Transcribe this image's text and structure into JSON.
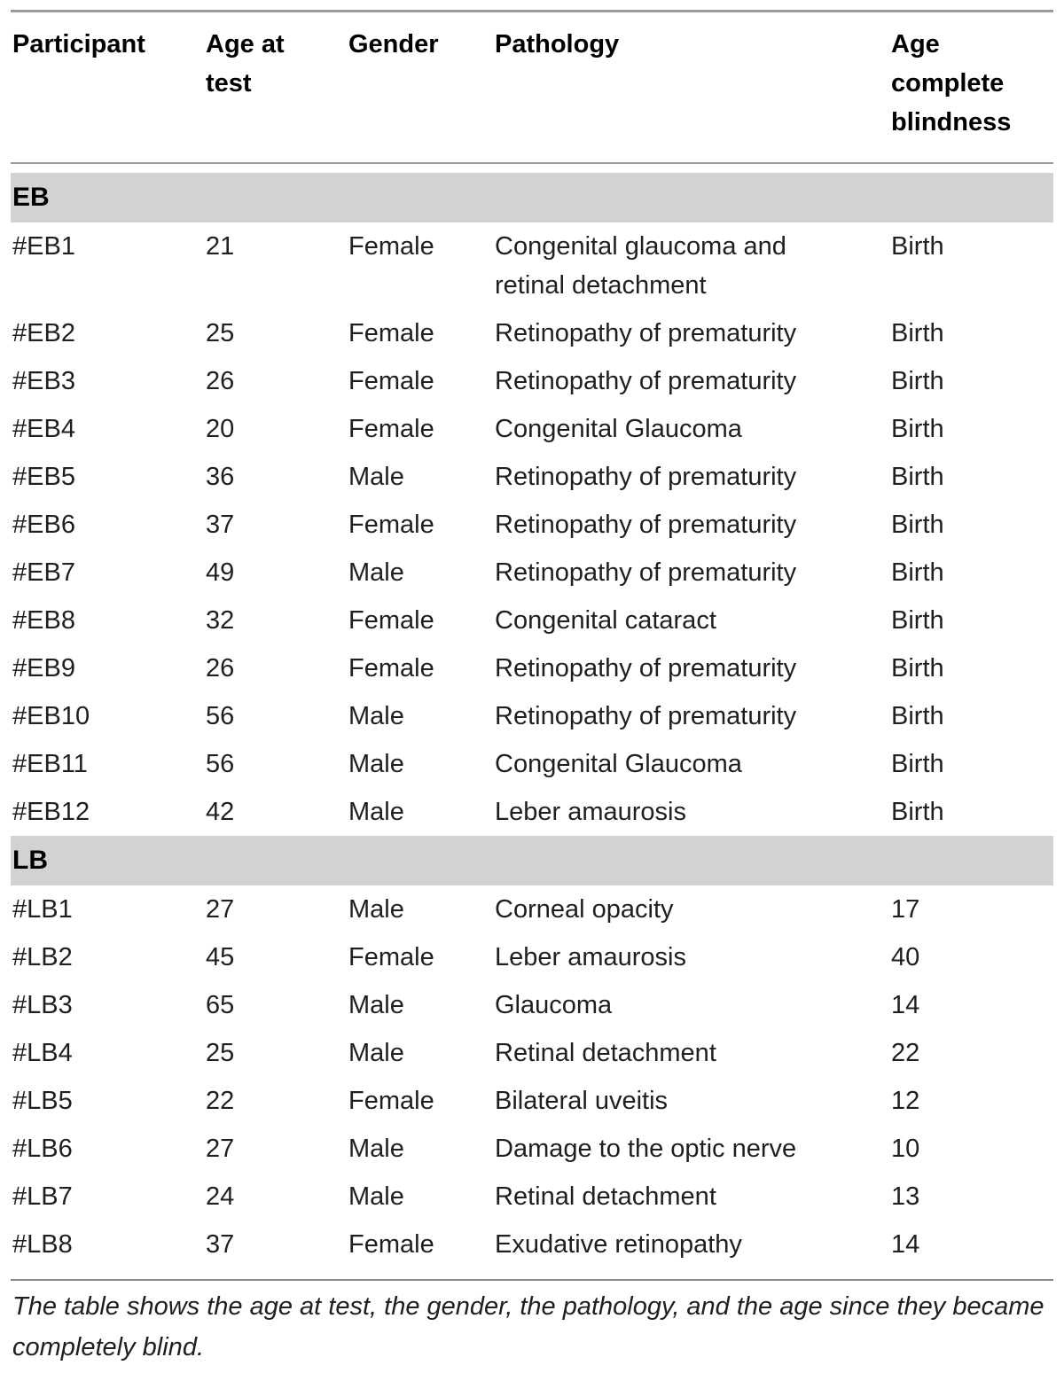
{
  "table": {
    "columns": [
      "Participant",
      "Age at test",
      "Gender",
      "Pathology",
      "Age complete blindness"
    ],
    "sections": [
      {
        "label": "EB",
        "rows": [
          [
            "#EB1",
            "21",
            "Female",
            "Congenital glaucoma and retinal detachment",
            "Birth"
          ],
          [
            "#EB2",
            "25",
            "Female",
            "Retinopathy of prematurity",
            "Birth"
          ],
          [
            "#EB3",
            "26",
            "Female",
            "Retinopathy of prematurity",
            "Birth"
          ],
          [
            "#EB4",
            "20",
            "Female",
            "Congenital Glaucoma",
            "Birth"
          ],
          [
            "#EB5",
            "36",
            "Male",
            "Retinopathy of prematurity",
            "Birth"
          ],
          [
            "#EB6",
            "37",
            "Female",
            "Retinopathy of prematurity",
            "Birth"
          ],
          [
            "#EB7",
            "49",
            "Male",
            "Retinopathy of prematurity",
            "Birth"
          ],
          [
            "#EB8",
            "32",
            "Female",
            "Congenital cataract",
            "Birth"
          ],
          [
            "#EB9",
            "26",
            "Female",
            "Retinopathy of prematurity",
            "Birth"
          ],
          [
            "#EB10",
            "56",
            "Male",
            "Retinopathy of prematurity",
            "Birth"
          ],
          [
            "#EB11",
            "56",
            "Male",
            "Congenital Glaucoma",
            "Birth"
          ],
          [
            "#EB12",
            "42",
            "Male",
            "Leber amaurosis",
            "Birth"
          ]
        ]
      },
      {
        "label": "LB",
        "rows": [
          [
            "#LB1",
            "27",
            "Male",
            "Corneal opacity",
            "17"
          ],
          [
            "#LB2",
            "45",
            "Female",
            "Leber amaurosis",
            "40"
          ],
          [
            "#LB3",
            "65",
            "Male",
            "Glaucoma",
            "14"
          ],
          [
            "#LB4",
            "25",
            "Male",
            "Retinal detachment",
            "22"
          ],
          [
            "#LB5",
            "22",
            "Female",
            "Bilateral uveitis",
            "12"
          ],
          [
            "#LB6",
            "27",
            "Male",
            "Damage to the optic nerve",
            "10"
          ],
          [
            "#LB7",
            "24",
            "Male",
            "Retinal detachment",
            "13"
          ],
          [
            "#LB8",
            "37",
            "Female",
            "Exudative retinopathy",
            "14"
          ]
        ]
      }
    ],
    "footnote": "The table shows the age at test, the gender, the pathology, and the age since they became completely blind."
  },
  "colors": {
    "section_band": "#d2d2d2",
    "rule": "#9b9b9b",
    "rule_bottom": "#8a8a8a",
    "text": "#1f1f1f",
    "heading": "#000000"
  }
}
